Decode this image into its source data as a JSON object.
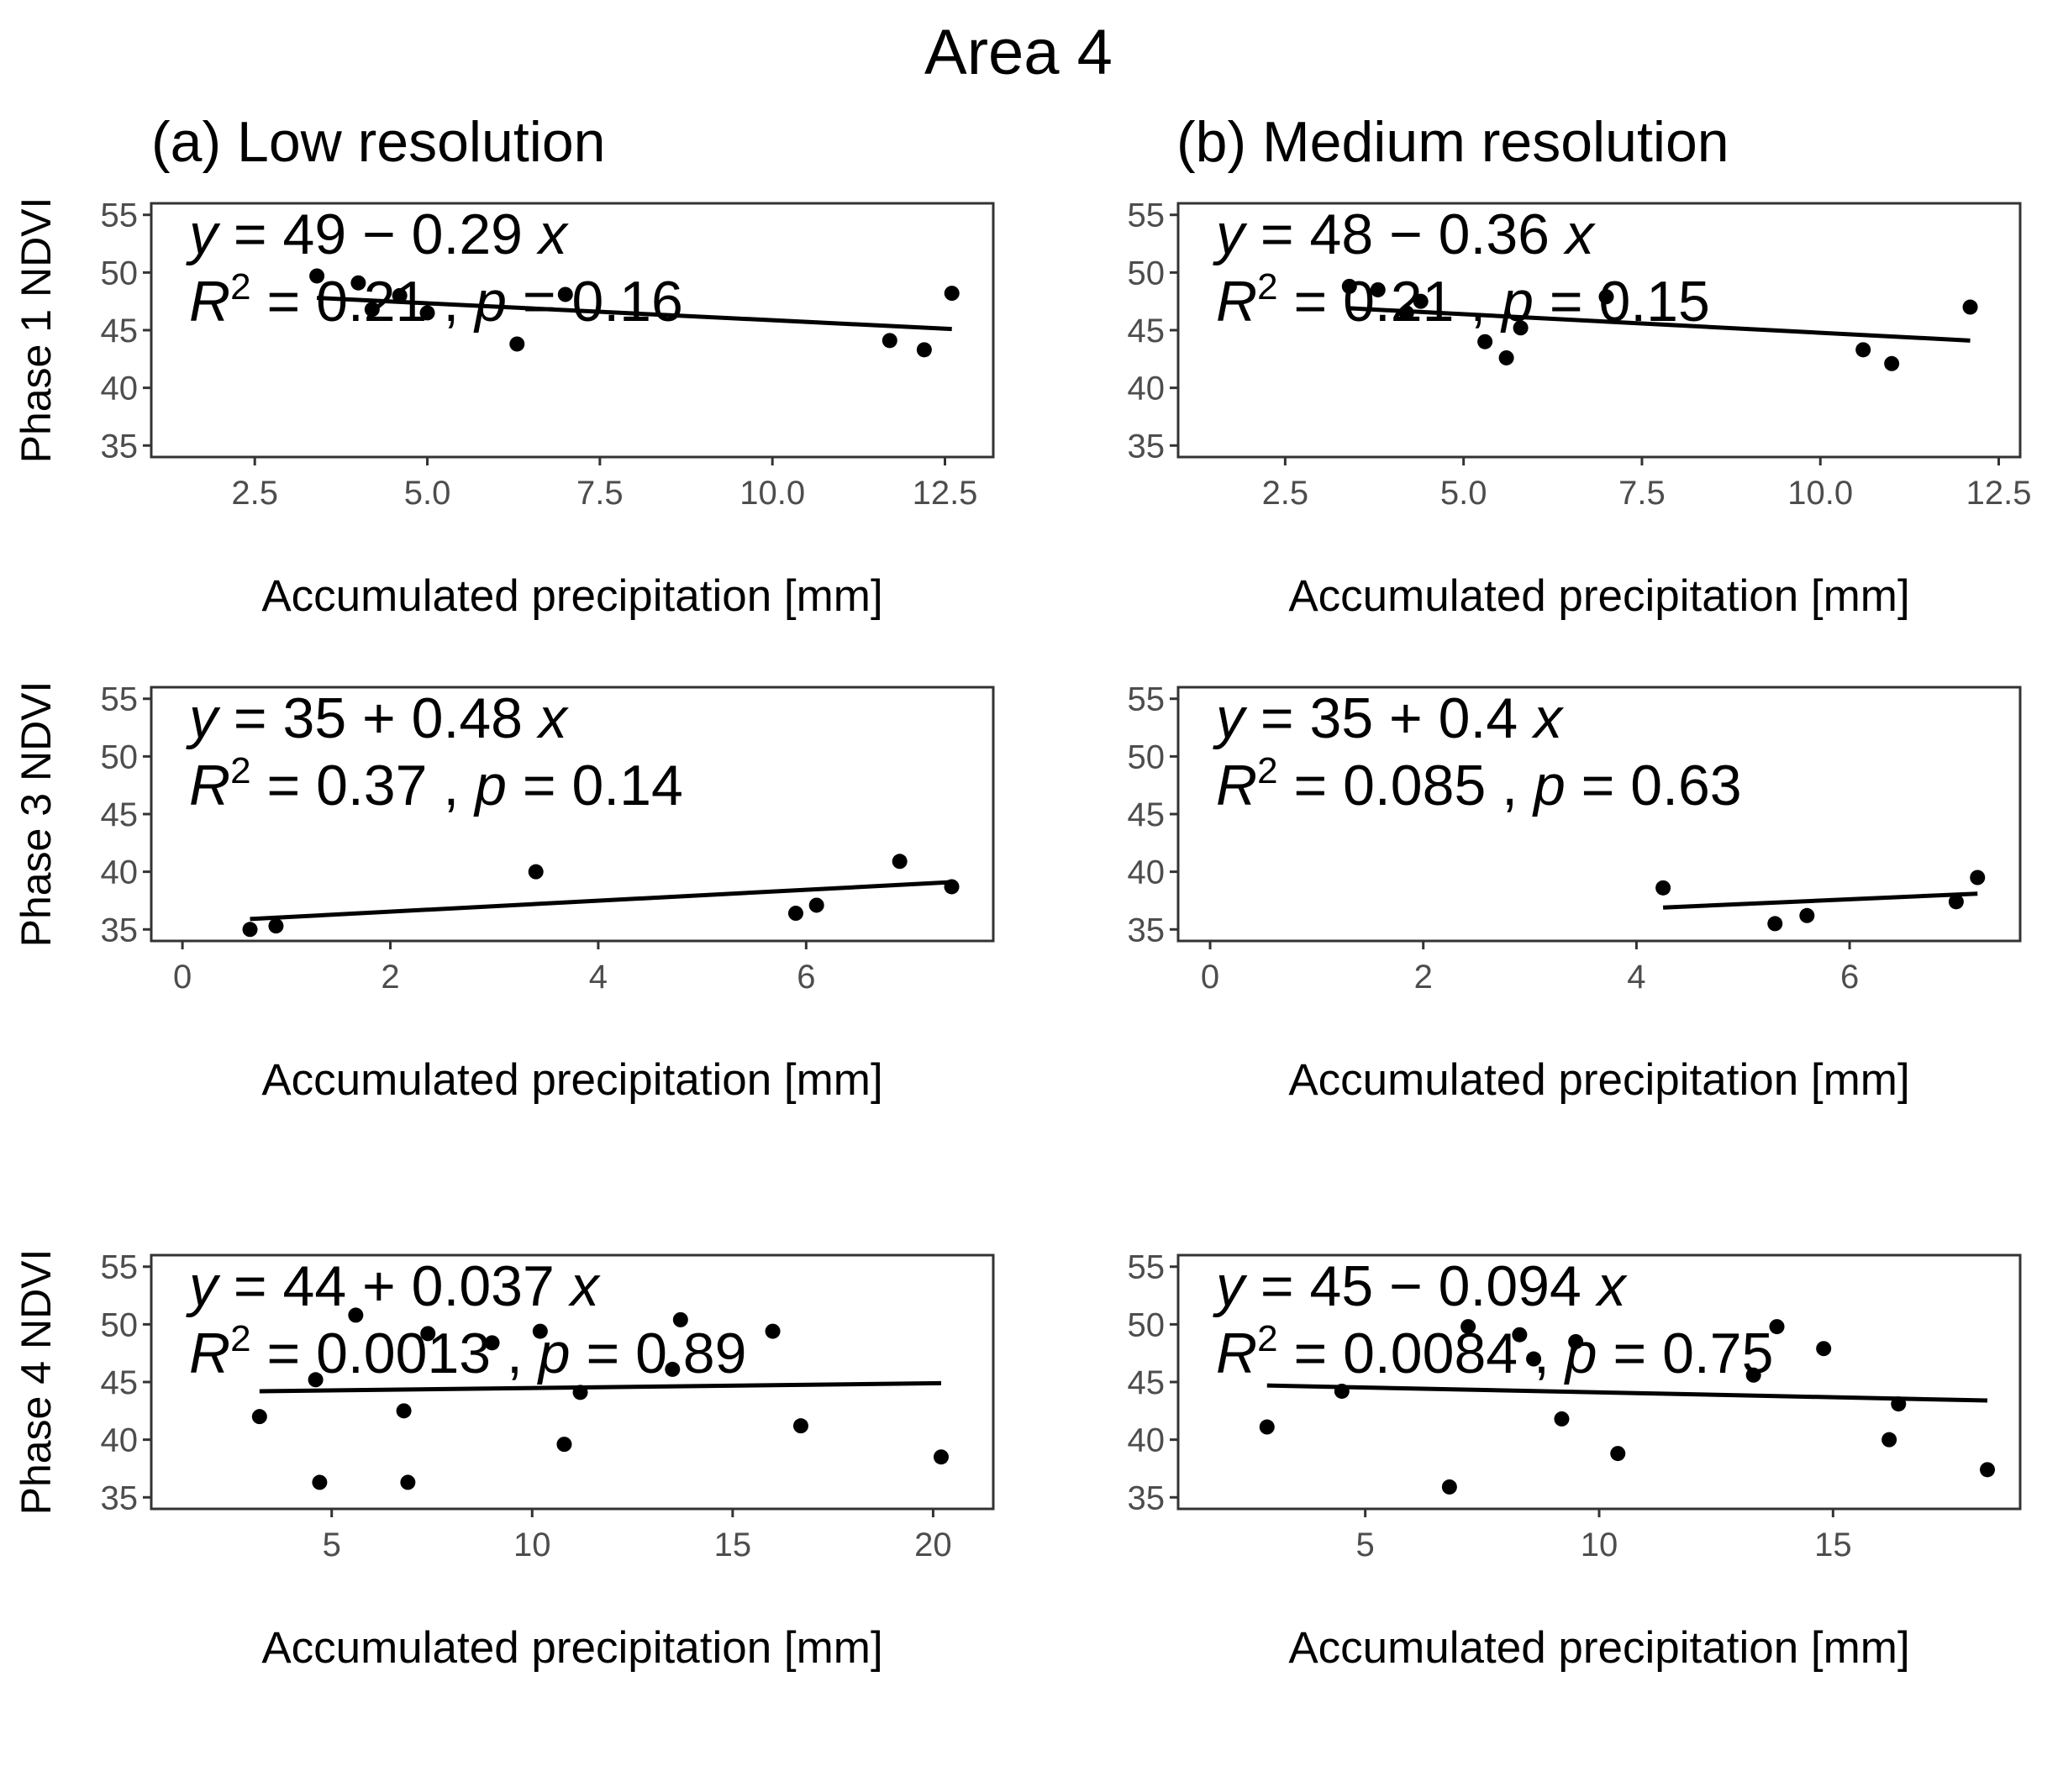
{
  "title": "Area 4",
  "columns": [
    "(a) Low resolution",
    "(b) Medium resolution"
  ],
  "chart_data": [
    {
      "type": "scatter",
      "panel": "phase1-low",
      "row": 0,
      "col": 0,
      "ylabel": "Phase 1 NDVI",
      "xlabel": "Accumulated precipitation [mm]",
      "xlim": [
        1,
        13.2
      ],
      "ylim": [
        34,
        56
      ],
      "xticks": [
        2.5,
        5.0,
        7.5,
        10.0,
        12.5
      ],
      "xtick_labels": [
        "2.5",
        "5.0",
        "7.5",
        "10.0",
        "12.5"
      ],
      "yticks": [
        35,
        40,
        45,
        50,
        55
      ],
      "ytick_labels": [
        "35",
        "40",
        "45",
        "50",
        "55"
      ],
      "points": [
        [
          3.4,
          49.7
        ],
        [
          4.0,
          49.1
        ],
        [
          4.2,
          46.8
        ],
        [
          4.6,
          48.0
        ],
        [
          5.0,
          46.5
        ],
        [
          6.3,
          43.8
        ],
        [
          7.0,
          48.1
        ],
        [
          11.7,
          44.1
        ],
        [
          12.2,
          43.3
        ],
        [
          12.6,
          48.2
        ]
      ],
      "fit": {
        "x": [
          3.4,
          12.6
        ],
        "y": [
          47.8,
          45.1
        ]
      },
      "eq_parts": [
        "y",
        " = 49 − 0.29 ",
        "x"
      ],
      "r2_parts": [
        "R",
        "2",
        " = 0.21 , ",
        "p",
        " = 0.16"
      ],
      "eq_pos": "top-left"
    },
    {
      "type": "scatter",
      "panel": "phase1-medium",
      "row": 0,
      "col": 1,
      "ylabel": "",
      "xlabel": "Accumulated precipitation [mm]",
      "xlim": [
        1,
        12.8
      ],
      "ylim": [
        34,
        56
      ],
      "xticks": [
        2.5,
        5.0,
        7.5,
        10.0,
        12.5
      ],
      "xtick_labels": [
        "2.5",
        "5.0",
        "7.5",
        "10.0",
        "12.5"
      ],
      "yticks": [
        35,
        40,
        45,
        50,
        55
      ],
      "ytick_labels": [
        "35",
        "40",
        "45",
        "50",
        "55"
      ],
      "points": [
        [
          3.4,
          48.8
        ],
        [
          3.8,
          48.5
        ],
        [
          4.2,
          46.5
        ],
        [
          4.4,
          47.5
        ],
        [
          5.3,
          44.0
        ],
        [
          5.6,
          42.6
        ],
        [
          5.8,
          45.2
        ],
        [
          7.0,
          47.9
        ],
        [
          10.6,
          43.3
        ],
        [
          11.0,
          42.1
        ],
        [
          12.1,
          47.0
        ]
      ],
      "fit": {
        "x": [
          3.4,
          12.1
        ],
        "y": [
          46.9,
          44.1
        ]
      },
      "eq_parts": [
        "y",
        " = 48 − 0.36 ",
        "x"
      ],
      "r2_parts": [
        "R",
        "2",
        " = 0.21 , ",
        "p",
        " = 0.15"
      ],
      "eq_pos": "top-left"
    },
    {
      "type": "scatter",
      "panel": "phase3-low",
      "row": 1,
      "col": 0,
      "ylabel": "Phase 3 NDVI",
      "xlabel": "Accumulated precipitation [mm]",
      "xlim": [
        -0.3,
        7.8
      ],
      "ylim": [
        34,
        56
      ],
      "xticks": [
        0,
        2,
        4,
        6
      ],
      "xtick_labels": [
        "0",
        "2",
        "4",
        "6"
      ],
      "yticks": [
        35,
        40,
        45,
        50,
        55
      ],
      "ytick_labels": [
        "35",
        "40",
        "45",
        "50",
        "55"
      ],
      "points": [
        [
          0.65,
          35.0
        ],
        [
          0.9,
          35.3
        ],
        [
          3.4,
          40.0
        ],
        [
          5.9,
          36.4
        ],
        [
          6.1,
          37.1
        ],
        [
          6.9,
          40.9
        ],
        [
          7.4,
          38.7
        ]
      ],
      "fit": {
        "x": [
          0.65,
          7.4
        ],
        "y": [
          35.9,
          39.1
        ]
      },
      "eq_parts": [
        "y",
        " = 35 + 0.48 ",
        "x"
      ],
      "r2_parts": [
        "R",
        "2",
        " = 0.37 , ",
        "p",
        " = 0.14"
      ],
      "eq_pos": "top-left"
    },
    {
      "type": "scatter",
      "panel": "phase3-medium",
      "row": 1,
      "col": 1,
      "ylabel": "",
      "xlabel": "Accumulated precipitation [mm]",
      "xlim": [
        -0.3,
        7.6
      ],
      "ylim": [
        34,
        56
      ],
      "xticks": [
        0,
        2,
        4,
        6
      ],
      "xtick_labels": [
        "0",
        "2",
        "4",
        "6"
      ],
      "yticks": [
        35,
        40,
        45,
        50,
        55
      ],
      "ytick_labels": [
        "35",
        "40",
        "45",
        "50",
        "55"
      ],
      "points": [
        [
          4.25,
          38.6
        ],
        [
          5.3,
          35.5
        ],
        [
          5.6,
          36.2
        ],
        [
          7.0,
          37.4
        ],
        [
          7.2,
          39.5
        ]
      ],
      "fit": {
        "x": [
          4.25,
          7.2
        ],
        "y": [
          36.9,
          38.1
        ]
      },
      "eq_parts": [
        "y",
        " = 35 + 0.4 ",
        "x"
      ],
      "r2_parts": [
        "R",
        "2",
        " = 0.085 , ",
        "p",
        " = 0.63"
      ],
      "eq_pos": "top-left"
    },
    {
      "type": "scatter",
      "panel": "phase4-low",
      "row": 2,
      "col": 0,
      "ylabel": "Phase 4 NDVI",
      "xlabel": "Accumulated precipitation [mm]",
      "xlim": [
        0.5,
        21.5
      ],
      "ylim": [
        34,
        56
      ],
      "xticks": [
        5,
        10,
        15,
        20
      ],
      "xtick_labels": [
        "5",
        "10",
        "15",
        "20"
      ],
      "yticks": [
        35,
        40,
        45,
        50,
        55
      ],
      "ytick_labels": [
        "35",
        "40",
        "45",
        "50",
        "55"
      ],
      "points": [
        [
          3.2,
          42.0
        ],
        [
          4.6,
          45.2
        ],
        [
          4.7,
          36.3
        ],
        [
          5.6,
          50.8
        ],
        [
          6.8,
          42.5
        ],
        [
          6.9,
          36.3
        ],
        [
          7.4,
          49.2
        ],
        [
          9.0,
          48.4
        ],
        [
          10.2,
          49.4
        ],
        [
          10.8,
          39.6
        ],
        [
          11.2,
          44.1
        ],
        [
          13.5,
          46.1
        ],
        [
          13.7,
          50.4
        ],
        [
          16.0,
          49.4
        ],
        [
          16.7,
          41.2
        ],
        [
          20.2,
          38.5
        ]
      ],
      "fit": {
        "x": [
          3.2,
          20.2
        ],
        "y": [
          44.2,
          44.9
        ]
      },
      "eq_parts": [
        "y",
        " = 44 + 0.037 ",
        "x"
      ],
      "r2_parts": [
        "R",
        "2",
        " = 0.0013 , ",
        "p",
        " = 0.89"
      ],
      "eq_pos": "top-left"
    },
    {
      "type": "scatter",
      "panel": "phase4-medium",
      "row": 2,
      "col": 1,
      "ylabel": "",
      "xlabel": "Accumulated precipitation [mm]",
      "xlim": [
        1,
        19
      ],
      "ylim": [
        34,
        56
      ],
      "xticks": [
        5,
        10,
        15
      ],
      "xtick_labels": [
        "5",
        "10",
        "15"
      ],
      "yticks": [
        35,
        40,
        45,
        50,
        55
      ],
      "ytick_labels": [
        "35",
        "40",
        "45",
        "50",
        "55"
      ],
      "points": [
        [
          2.9,
          41.1
        ],
        [
          4.5,
          44.2
        ],
        [
          6.8,
          35.9
        ],
        [
          7.2,
          49.8
        ],
        [
          8.3,
          49.1
        ],
        [
          8.6,
          47.0
        ],
        [
          9.2,
          41.8
        ],
        [
          9.5,
          48.5
        ],
        [
          10.4,
          38.8
        ],
        [
          13.3,
          45.6
        ],
        [
          13.8,
          49.8
        ],
        [
          14.8,
          47.9
        ],
        [
          16.2,
          40.0
        ],
        [
          16.4,
          43.1
        ],
        [
          18.3,
          37.4
        ]
      ],
      "fit": {
        "x": [
          2.9,
          18.3
        ],
        "y": [
          44.7,
          43.4
        ]
      },
      "eq_parts": [
        "y",
        " = 45 − 0.094 ",
        "x"
      ],
      "r2_parts": [
        "R",
        "2",
        " = 0.0084 , ",
        "p",
        " = 0.75"
      ],
      "eq_pos": "top-left"
    }
  ]
}
